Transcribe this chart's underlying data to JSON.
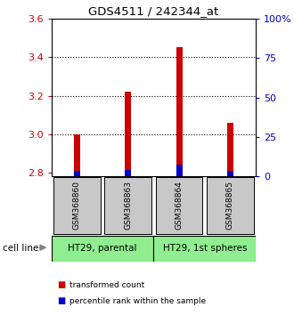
{
  "title": "GDS4511 / 242344_at",
  "samples": [
    "GSM368860",
    "GSM368863",
    "GSM368864",
    "GSM368865"
  ],
  "red_values": [
    3.0,
    3.22,
    3.455,
    3.06
  ],
  "blue_values": [
    2.808,
    2.814,
    2.842,
    2.808
  ],
  "ymin": 2.78,
  "ymax": 3.6,
  "yticks_left": [
    2.8,
    3.0,
    3.2,
    3.4,
    3.6
  ],
  "yticks_right": [
    0,
    25,
    50,
    75,
    100
  ],
  "yticks_right_labels": [
    "0",
    "25",
    "50",
    "75",
    "100%"
  ],
  "bar_base": 2.78,
  "groups": [
    {
      "label": "HT29, parental",
      "color": "#90EE90"
    },
    {
      "label": "HT29, 1st spheres",
      "color": "#90EE90"
    }
  ],
  "sample_box_color": "#C8C8C8",
  "legend_red_label": "transformed count",
  "legend_blue_label": "percentile rank within the sample",
  "cell_line_label": "cell line",
  "left_axis_color": "#CC0000",
  "right_axis_color": "#0000CC",
  "dotted_yticks": [
    3.0,
    3.2,
    3.4
  ],
  "bar_width": 0.12
}
